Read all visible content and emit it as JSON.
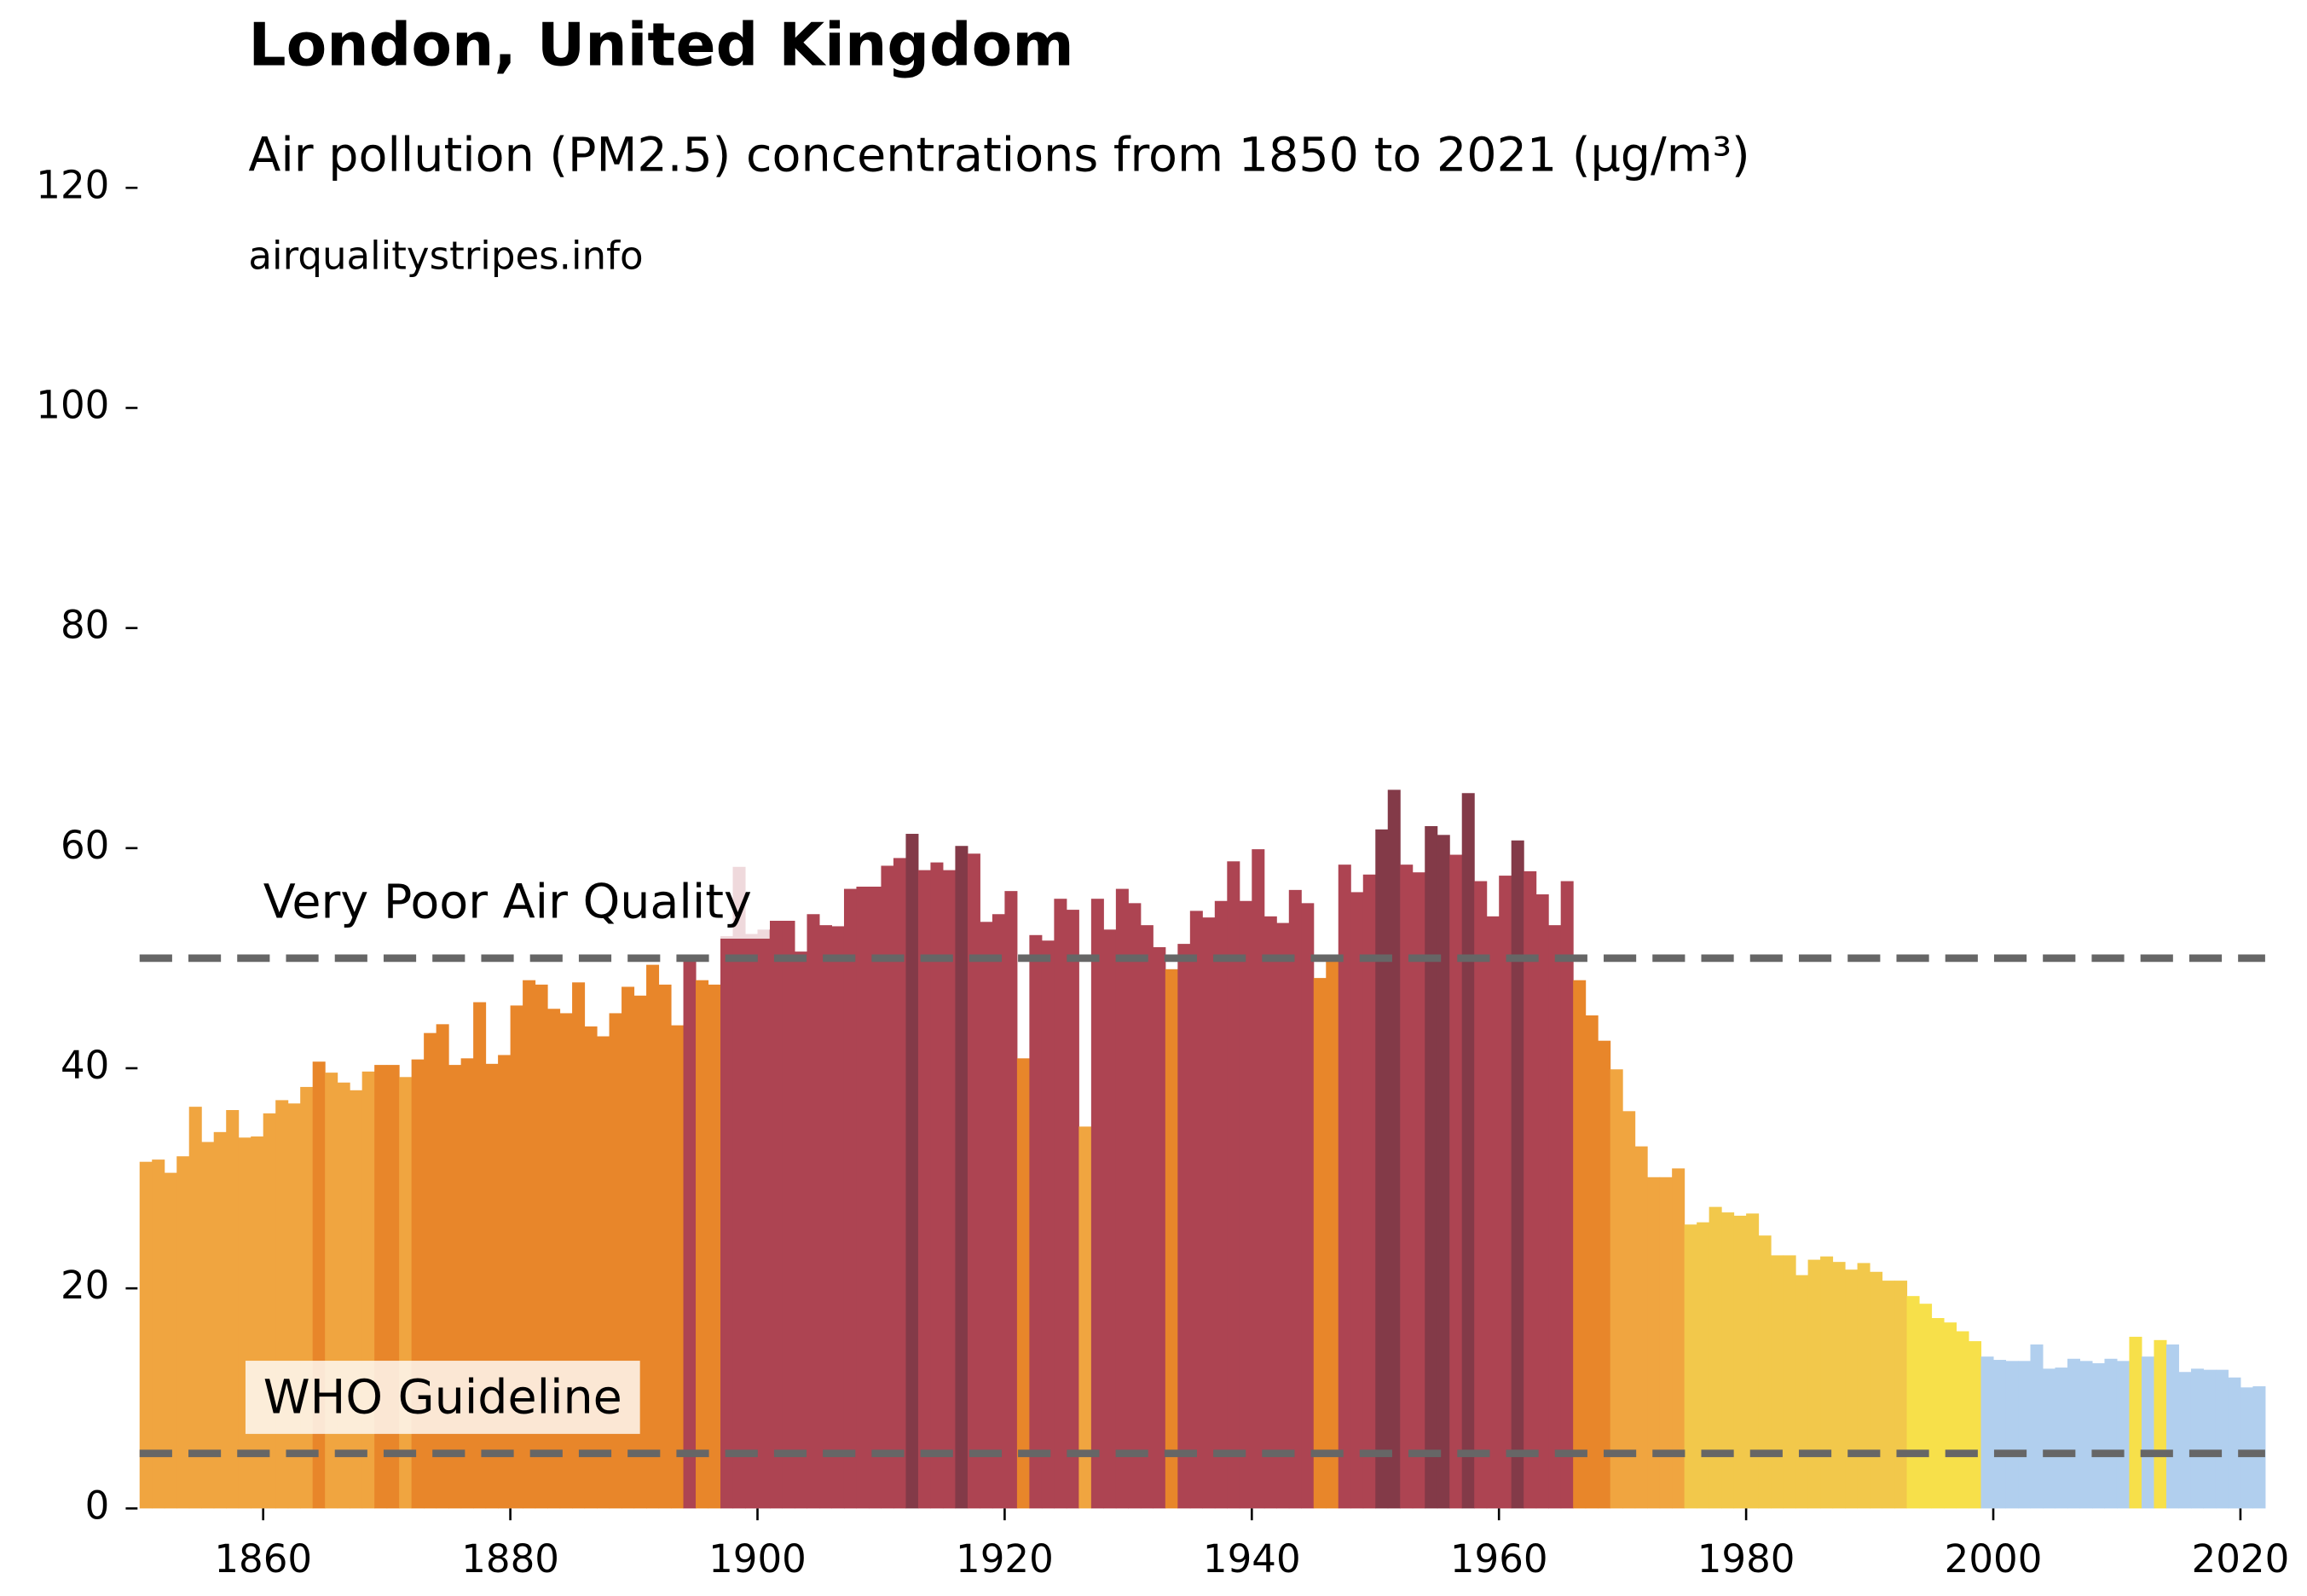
{
  "chart_data": {
    "type": "bar",
    "title": "London, United Kingdom",
    "subtitle": "Air pollution (PM2.5) concentrations from 1850 to 2021 (µg/m³)",
    "source": "airqualitystripes.info",
    "x": [
      1850,
      1851,
      1852,
      1853,
      1854,
      1855,
      1856,
      1857,
      1858,
      1859,
      1860,
      1861,
      1862,
      1863,
      1864,
      1865,
      1866,
      1867,
      1868,
      1869,
      1870,
      1871,
      1872,
      1873,
      1874,
      1875,
      1876,
      1877,
      1878,
      1879,
      1880,
      1881,
      1882,
      1883,
      1884,
      1885,
      1886,
      1887,
      1888,
      1889,
      1890,
      1891,
      1892,
      1893,
      1894,
      1895,
      1896,
      1897,
      1898,
      1899,
      1900,
      1901,
      1902,
      1903,
      1904,
      1905,
      1906,
      1907,
      1908,
      1909,
      1910,
      1911,
      1912,
      1913,
      1914,
      1915,
      1916,
      1917,
      1918,
      1919,
      1920,
      1921,
      1922,
      1923,
      1924,
      1925,
      1926,
      1927,
      1928,
      1929,
      1930,
      1931,
      1932,
      1933,
      1934,
      1935,
      1936,
      1937,
      1938,
      1939,
      1940,
      1941,
      1942,
      1943,
      1944,
      1945,
      1946,
      1947,
      1948,
      1949,
      1950,
      1951,
      1952,
      1953,
      1954,
      1955,
      1956,
      1957,
      1958,
      1959,
      1960,
      1961,
      1962,
      1963,
      1964,
      1965,
      1966,
      1967,
      1968,
      1969,
      1970,
      1971,
      1972,
      1973,
      1974,
      1975,
      1976,
      1977,
      1978,
      1979,
      1980,
      1981,
      1982,
      1983,
      1984,
      1985,
      1986,
      1987,
      1988,
      1989,
      1990,
      1991,
      1992,
      1993,
      1994,
      1995,
      1996,
      1997,
      1998,
      1999,
      2000,
      2001,
      2002,
      2003,
      2004,
      2005,
      2006,
      2007,
      2008,
      2009,
      2010,
      2011,
      2012,
      2013,
      2014,
      2015,
      2016,
      2017,
      2018,
      2019,
      2020,
      2021
    ],
    "values": [
      31.5,
      31.7,
      30.5,
      32,
      36.5,
      33.3,
      34.2,
      36.2,
      33.7,
      33.8,
      35.9,
      37.1,
      36.8,
      38.3,
      40.6,
      39.6,
      38.7,
      38,
      39.7,
      40.3,
      40.3,
      39.2,
      40.8,
      43.2,
      44,
      40.3,
      40.9,
      46,
      40.4,
      41.2,
      45.7,
      48,
      47.6,
      45.4,
      45,
      47.8,
      43.8,
      42.9,
      45,
      47.4,
      46.6,
      49.4,
      47.6,
      43.9,
      50.2,
      48,
      47.6,
      52,
      58.3,
      52.2,
      52.6,
      53.4,
      53.4,
      50.6,
      54,
      53,
      52.9,
      56.3,
      56.5,
      56.5,
      58.4,
      59.1,
      61.3,
      58,
      58.7,
      58,
      60.2,
      59.5,
      53.3,
      54,
      56.1,
      40.9,
      52.1,
      51.6,
      55.4,
      54.4,
      34.7,
      55.4,
      52.6,
      56.3,
      55,
      53,
      51,
      49,
      51.3,
      54.3,
      53.7,
      55.2,
      58.8,
      55.2,
      59.9,
      53.8,
      53.2,
      56.2,
      55,
      48.2,
      49.8,
      58.5,
      56,
      57.6,
      61.7,
      65.3,
      58.5,
      57.8,
      62,
      61.2,
      59.4,
      65,
      57,
      53.8,
      57.5,
      60.7,
      57.9,
      55.8,
      53,
      57,
      48,
      44.8,
      42.5,
      39.9,
      36.1,
      32.9,
      30.1,
      30.1,
      30.9,
      25.8,
      26,
      27.4,
      26.9,
      26.6,
      26.8,
      24.8,
      23,
      23,
      21.2,
      22.6,
      22.9,
      22.4,
      21.7,
      22.3,
      21.5,
      20.7,
      20.7,
      19.3,
      18.6,
      17.3,
      16.9,
      16.1,
      15.2,
      13.8,
      13.5,
      13.4,
      13.4,
      14.9,
      12.7,
      12.8,
      13.6,
      13.4,
      13.2,
      13.6,
      13.4,
      15.6,
      13.8,
      15.3,
      14.9,
      12.4,
      12.7,
      12.6,
      12.6,
      11.9,
      11,
      11.1
    ],
    "colors": [
      "#f0a540",
      "#f0a540",
      "#f0a540",
      "#f0a540",
      "#f0a540",
      "#f0a540",
      "#f0a540",
      "#f0a540",
      "#f0a540",
      "#f0a540",
      "#f0a540",
      "#f0a540",
      "#f0a540",
      "#f0a540",
      "#e8862a",
      "#f0a540",
      "#f0a540",
      "#f0a540",
      "#f0a540",
      "#e8862a",
      "#e8862a",
      "#f0a540",
      "#e8862a",
      "#e8862a",
      "#e8862a",
      "#e8862a",
      "#e8862a",
      "#e8862a",
      "#e8862a",
      "#e8862a",
      "#e8862a",
      "#e8862a",
      "#e8862a",
      "#e8862a",
      "#e8862a",
      "#e8862a",
      "#e8862a",
      "#e8862a",
      "#e8862a",
      "#e8862a",
      "#e8862a",
      "#e8862a",
      "#e8862a",
      "#e8862a",
      "#ad4452",
      "#e8862a",
      "#e8862a",
      "#ad4452",
      "#ad4452",
      "#ad4452",
      "#ad4452",
      "#ad4452",
      "#ad4452",
      "#ad4452",
      "#ad4452",
      "#ad4452",
      "#ad4452",
      "#ad4452",
      "#ad4452",
      "#ad4452",
      "#ad4452",
      "#ad4452",
      "#833a48",
      "#ad4452",
      "#ad4452",
      "#ad4452",
      "#833a48",
      "#ad4452",
      "#ad4452",
      "#ad4452",
      "#ad4452",
      "#e8862a",
      "#ad4452",
      "#ad4452",
      "#ad4452",
      "#ad4452",
      "#f0a540",
      "#ad4452",
      "#ad4452",
      "#ad4452",
      "#ad4452",
      "#ad4452",
      "#ad4452",
      "#e8862a",
      "#ad4452",
      "#ad4452",
      "#ad4452",
      "#ad4452",
      "#ad4452",
      "#ad4452",
      "#ad4452",
      "#ad4452",
      "#ad4452",
      "#ad4452",
      "#ad4452",
      "#e8862a",
      "#e8862a",
      "#ad4452",
      "#ad4452",
      "#ad4452",
      "#833a48",
      "#833a48",
      "#ad4452",
      "#ad4452",
      "#833a48",
      "#833a48",
      "#ad4452",
      "#833a48",
      "#ad4452",
      "#ad4452",
      "#ad4452",
      "#833a48",
      "#ad4452",
      "#ad4452",
      "#ad4452",
      "#ad4452",
      "#e8862a",
      "#e8862a",
      "#e8862a",
      "#f0a540",
      "#f0a540",
      "#f0a540",
      "#f0a540",
      "#f0a540",
      "#f0a540",
      "#f2c84b",
      "#f2c84b",
      "#f2c84b",
      "#f2c84b",
      "#f2c84b",
      "#f2c84b",
      "#f2c84b",
      "#f2c84b",
      "#f2c84b",
      "#f2c84b",
      "#f2c84b",
      "#f2c84b",
      "#f2c84b",
      "#f2c84b",
      "#f2c84b",
      "#f2c84b",
      "#f2c84b",
      "#f2c84b",
      "#f7e04a",
      "#f7e04a",
      "#f7e04a",
      "#f7e04a",
      "#f7e04a",
      "#f7e04a",
      "#b1cfee",
      "#b1cfee",
      "#b1cfee",
      "#b1cfee",
      "#b1cfee",
      "#b1cfee",
      "#b1cfee",
      "#b1cfee",
      "#b1cfee",
      "#b1cfee",
      "#b1cfee",
      "#b1cfee",
      "#f7e04a",
      "#b1cfee",
      "#f7e04a",
      "#b1cfee",
      "#b1cfee",
      "#b1cfee",
      "#b1cfee",
      "#b1cfee",
      "#b1cfee",
      "#b1cfee",
      "#b1cfee"
    ],
    "xlim": [
      1850,
      2022
    ],
    "xticks": [
      1860,
      1880,
      1900,
      1920,
      1940,
      1960,
      1980,
      2000,
      2020
    ],
    "ylim": [
      0,
      120
    ],
    "yticks": [
      0,
      20,
      40,
      60,
      80,
      100,
      120
    ],
    "reference_lines": [
      {
        "value": 50,
        "label": "Very Poor Air Quality"
      },
      {
        "value": 5,
        "label": "WHO Guideline"
      }
    ],
    "reference_color": "#666666"
  }
}
